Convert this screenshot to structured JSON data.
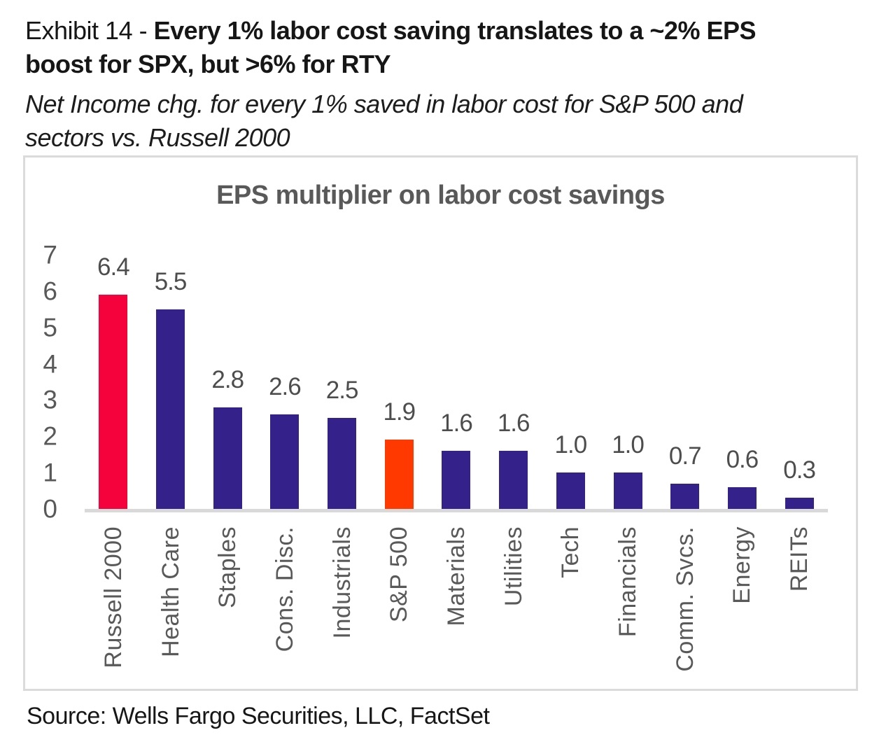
{
  "header": {
    "exhibit_label": "Exhibit 14 - ",
    "title_line1_bold": "Every 1% labor cost saving translates to a ~2% EPS",
    "title_line2_bold": "boost for SPX, but >6% for RTY",
    "subtitle_line1": "Net Income chg. for every 1% saved in labor cost for S&P 500 and",
    "subtitle_line2": "sectors vs. Russell 2000"
  },
  "chart_data": {
    "type": "bar",
    "title": "EPS multiplier on labor cost savings",
    "categories": [
      "Russell 2000",
      "Health Care",
      "Staples",
      "Cons. Disc.",
      "Industrials",
      "S&P 500",
      "Materials",
      "Utilities",
      "Tech",
      "Financials",
      "Comm. Svcs.",
      "Energy",
      "REITs"
    ],
    "values": [
      6.4,
      5.5,
      2.8,
      2.6,
      2.5,
      1.9,
      1.6,
      1.6,
      1.0,
      1.0,
      0.7,
      0.6,
      0.3
    ],
    "bar_colors": [
      "#F5023D",
      "#35218A",
      "#35218A",
      "#35218A",
      "#35218A",
      "#FF3900",
      "#35218A",
      "#35218A",
      "#35218A",
      "#35218A",
      "#35218A",
      "#35218A",
      "#35218A"
    ],
    "xlabel": "",
    "ylabel": "",
    "ylim": [
      0,
      7
    ],
    "y_ticks": [
      7,
      6,
      5,
      4,
      3,
      2,
      1,
      0
    ],
    "grid": false,
    "legend": "none",
    "value_label_decimals": 1,
    "highlight_colors": {
      "russell_2000": "#F5023D",
      "sp_500": "#FF3900",
      "sector_default": "#35218A",
      "axis_text": "#595959",
      "baseline": "#D9D9D9"
    }
  },
  "source": {
    "text": "Source: Wells Fargo Securities, LLC, FactSet"
  }
}
